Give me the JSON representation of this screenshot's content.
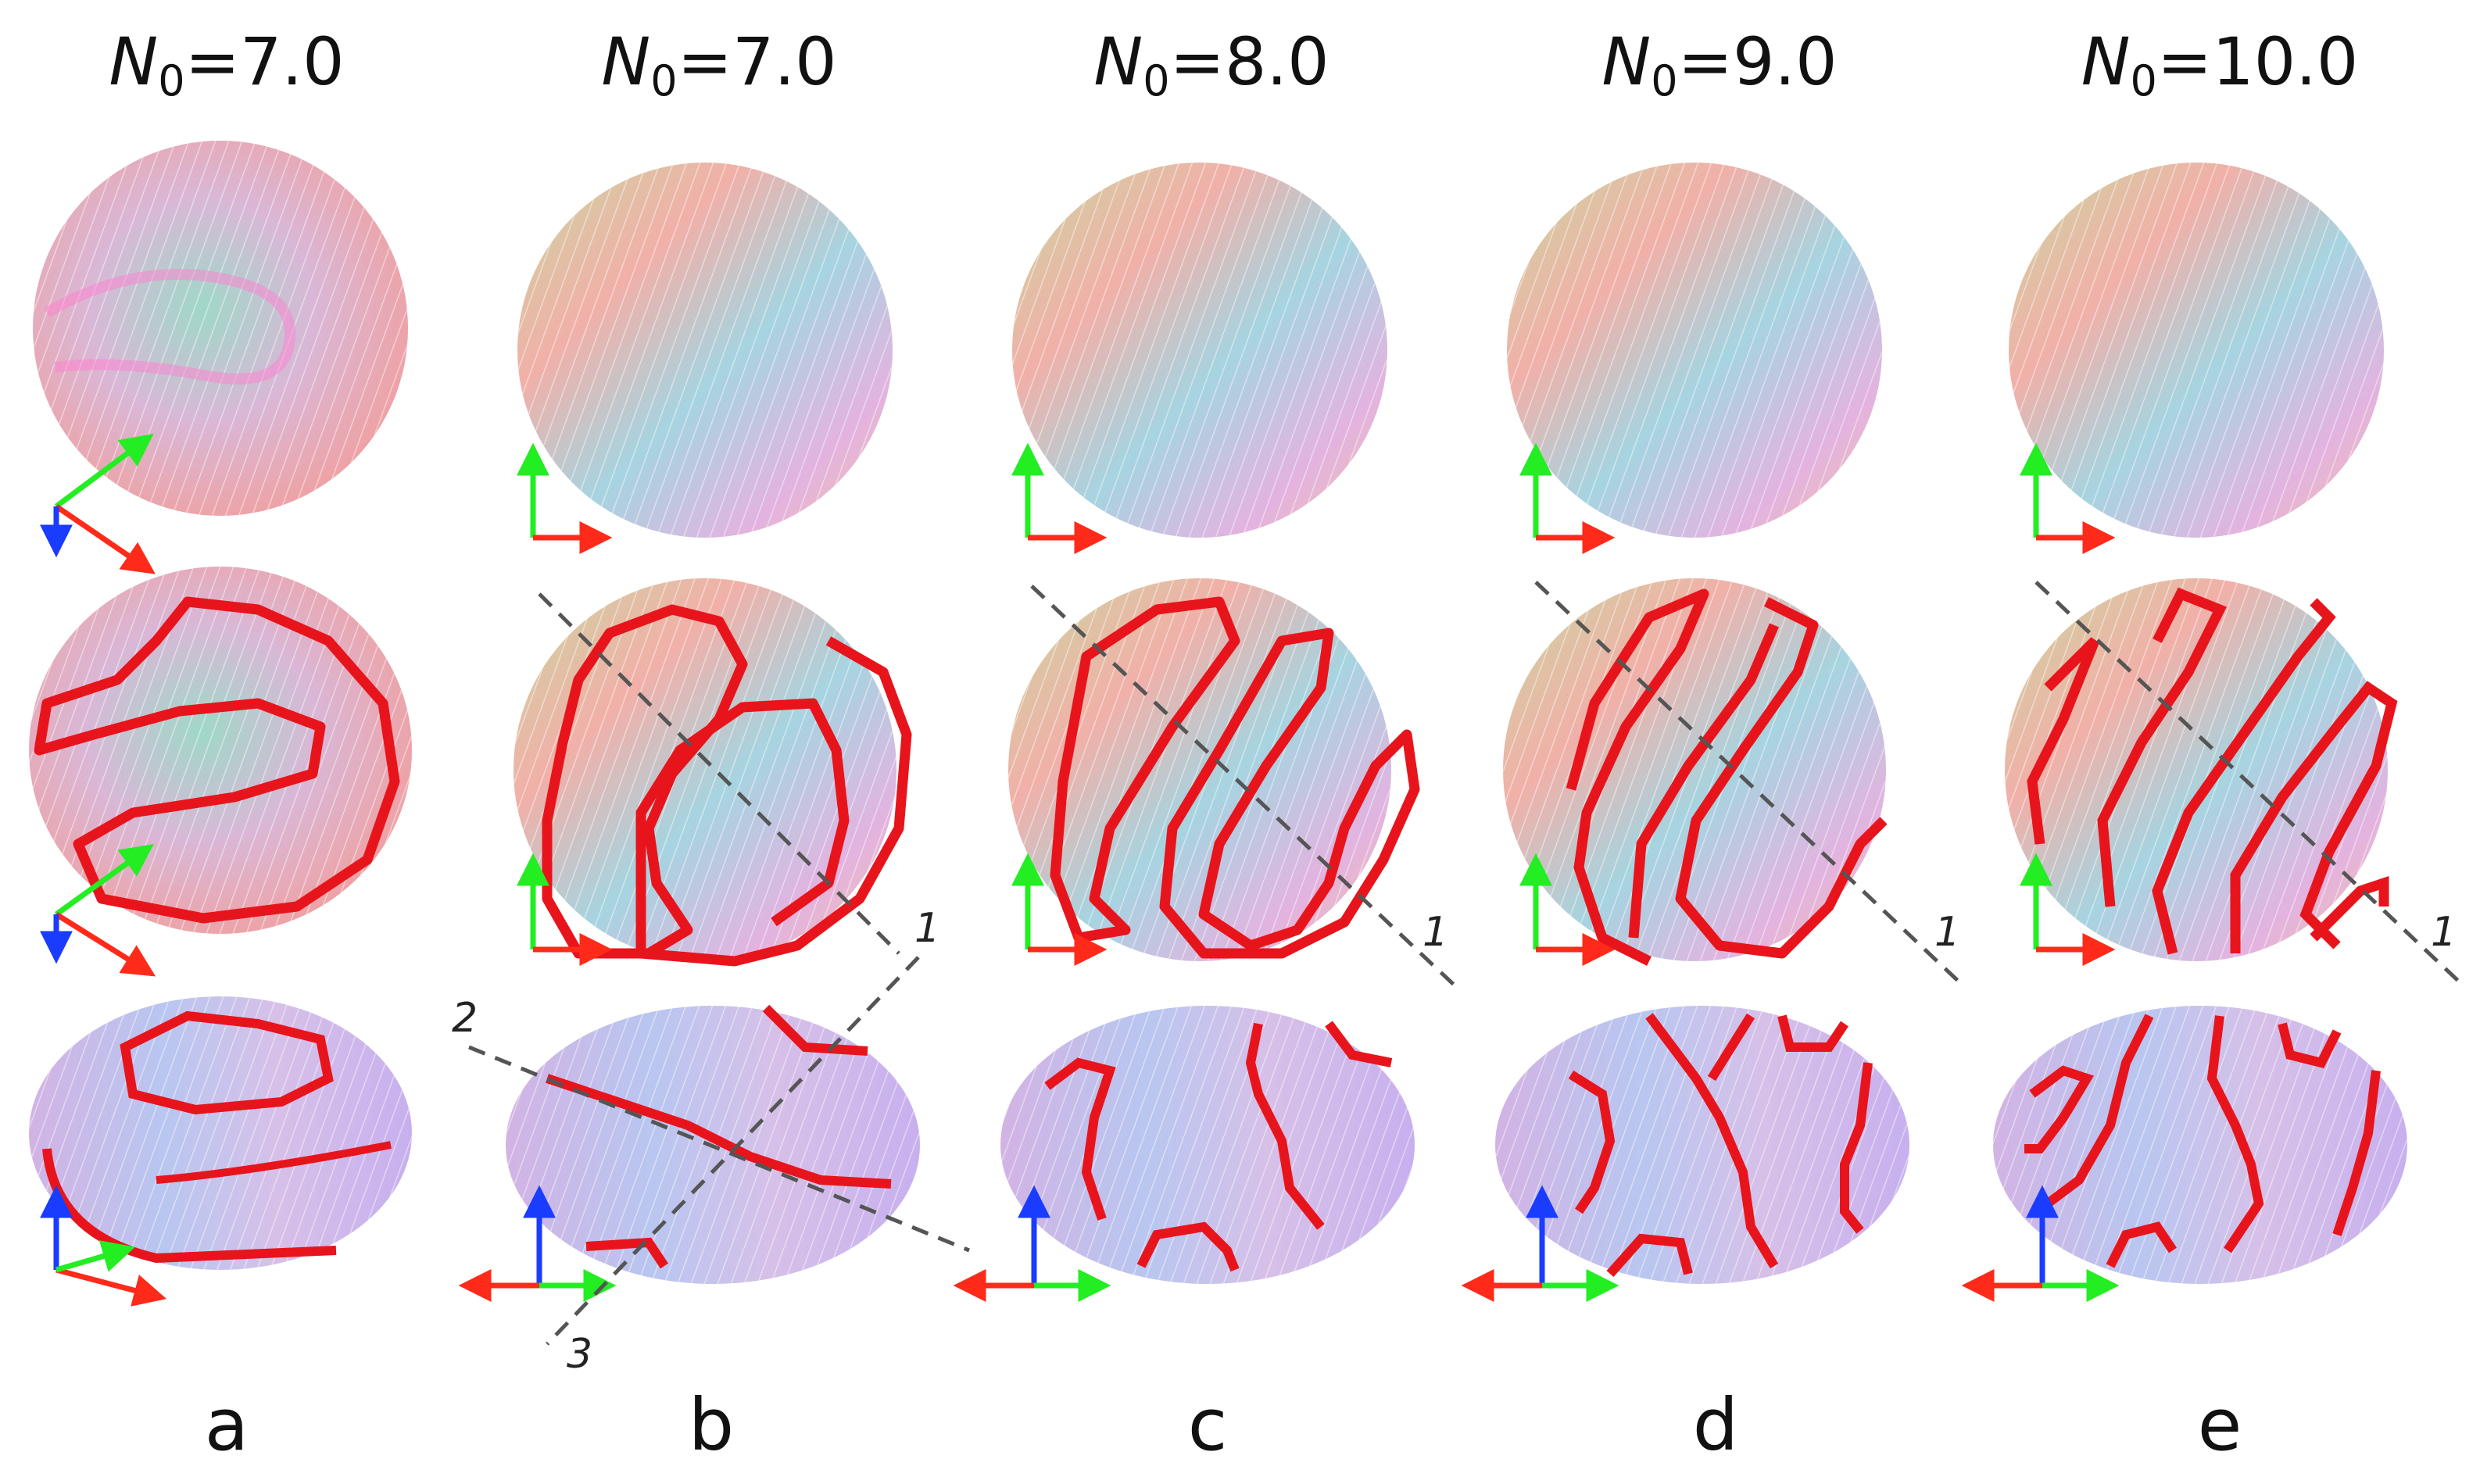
{
  "columns": [
    {
      "id": "a",
      "symbol": "N",
      "subscript": "0",
      "value": "=7.0",
      "label": "a"
    },
    {
      "id": "b",
      "symbol": "N",
      "subscript": "0",
      "value": "=7.0",
      "label": "b"
    },
    {
      "id": "c",
      "symbol": "N",
      "subscript": "0",
      "value": "=8.0",
      "label": "c"
    },
    {
      "id": "d",
      "symbol": "N",
      "subscript": "0",
      "value": "=9.0",
      "label": "d"
    },
    {
      "id": "e",
      "symbol": "N",
      "subscript": "0",
      "value": "=10.0",
      "label": "e"
    }
  ],
  "line_labels": {
    "one": "1",
    "two": "2",
    "three": "3"
  },
  "colors": {
    "axis_x": "#ff2a1a",
    "axis_y": "#22ee22",
    "axis_z": "#1a3cff",
    "defect_line": "#e8141c",
    "cut_line": "#555555"
  }
}
